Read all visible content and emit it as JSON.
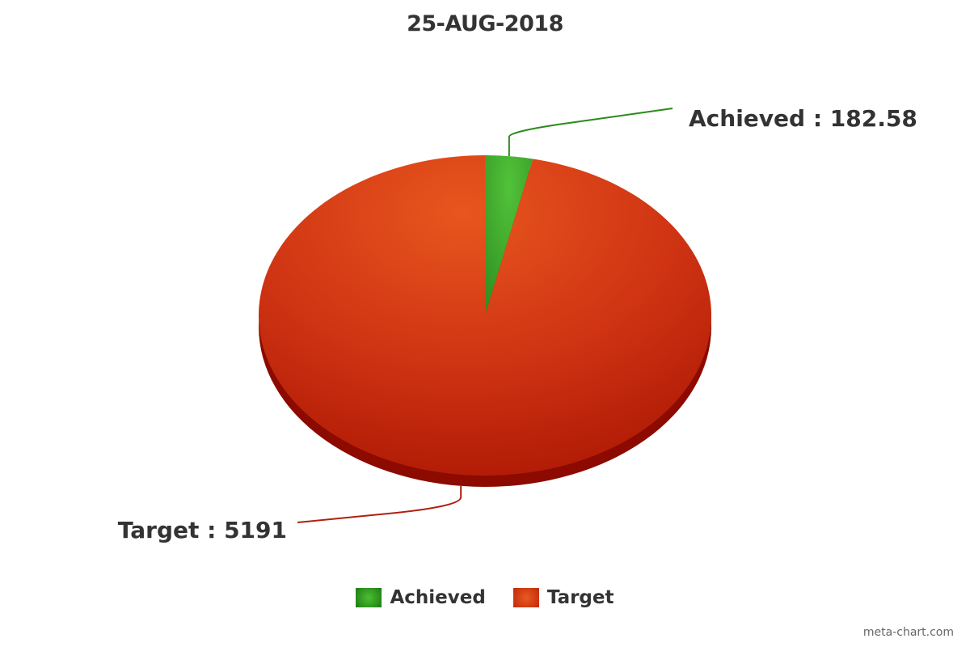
{
  "title": "25-AUG-2018",
  "credit": "meta-chart.com",
  "colors": {
    "achieved": "#3aa52a",
    "achieved_dark": "#1e7a14",
    "target": "#d8401c",
    "target_dark": "#8c0a00",
    "leader_achieved": "#2a8a1a",
    "leader_target": "#b02010"
  },
  "chart_data": {
    "type": "pie",
    "title": "25-AUG-2018",
    "slices": [
      {
        "name": "Achieved",
        "value": 182.58,
        "label": "Achieved : 182.58"
      },
      {
        "name": "Target",
        "value": 5191,
        "label": "Target : 5191"
      }
    ],
    "legend_position": "bottom"
  },
  "legend": {
    "items": [
      {
        "label": "Achieved"
      },
      {
        "label": "Target"
      }
    ]
  }
}
